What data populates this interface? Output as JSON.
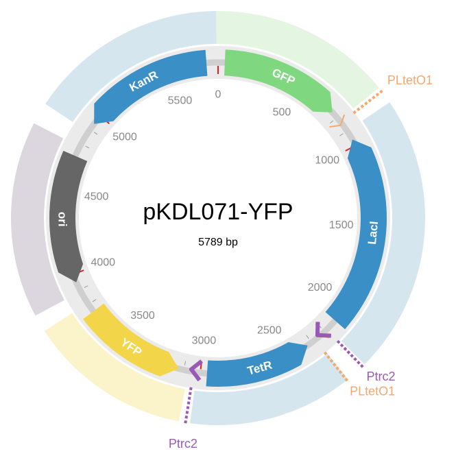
{
  "plasmid": {
    "name": "pKDL071-YFP",
    "length_label": "5789 bp",
    "length": 5789
  },
  "axis": {
    "labels": [
      {
        "text": "0",
        "pos": 0
      },
      {
        "text": "500",
        "pos": 500
      },
      {
        "text": "1000",
        "pos": 1000
      },
      {
        "text": "1500",
        "pos": 1500
      },
      {
        "text": "2000",
        "pos": 2000
      },
      {
        "text": "2500",
        "pos": 2500
      },
      {
        "text": "3000",
        "pos": 3000
      },
      {
        "text": "3500",
        "pos": 3500
      },
      {
        "text": "4000",
        "pos": 4000
      },
      {
        "text": "4500",
        "pos": 4500
      },
      {
        "text": "5000",
        "pos": 5000
      },
      {
        "text": "5500",
        "pos": 5500
      }
    ]
  },
  "features": [
    {
      "name": "GFP",
      "start": 40,
      "end": 760,
      "direction": "forward",
      "color": "#7fd87f",
      "halo": "#e4f6e1"
    },
    {
      "name": "LacI",
      "start": 960,
      "end": 2110,
      "direction": "reverse",
      "color": "#3b8fc7",
      "halo": "#d6e6ef"
    },
    {
      "name": "TetR",
      "start": 2330,
      "end": 2960,
      "direction": "reverse",
      "color": "#3b8fc7",
      "halo": "#d6e6ef"
    },
    {
      "name": "YFP",
      "start": 3130,
      "end": 3750,
      "direction": "reverse",
      "color": "#f2d548",
      "halo": "#fbf3c9"
    },
    {
      "name": "ori",
      "start": 3950,
      "end": 4720,
      "direction": "reverse",
      "color": "#666666",
      "halo": "#dcd6df"
    },
    {
      "name": "KanR",
      "start": 4940,
      "end": 5720,
      "direction": "reverse",
      "color": "#3b8fc7",
      "halo": "#d6e6ef"
    }
  ],
  "promoters": [
    {
      "name": "PLtetO1",
      "pos": 840,
      "color": "#f6a76c"
    },
    {
      "name": "PLtetO1",
      "pos": 2230,
      "color": "#f6a76c"
    },
    {
      "name": "Ptrc2",
      "pos": 2230,
      "color": "#9b59b6"
    },
    {
      "name": "Ptrc2",
      "pos": 3040,
      "color": "#9b59b6"
    }
  ]
}
